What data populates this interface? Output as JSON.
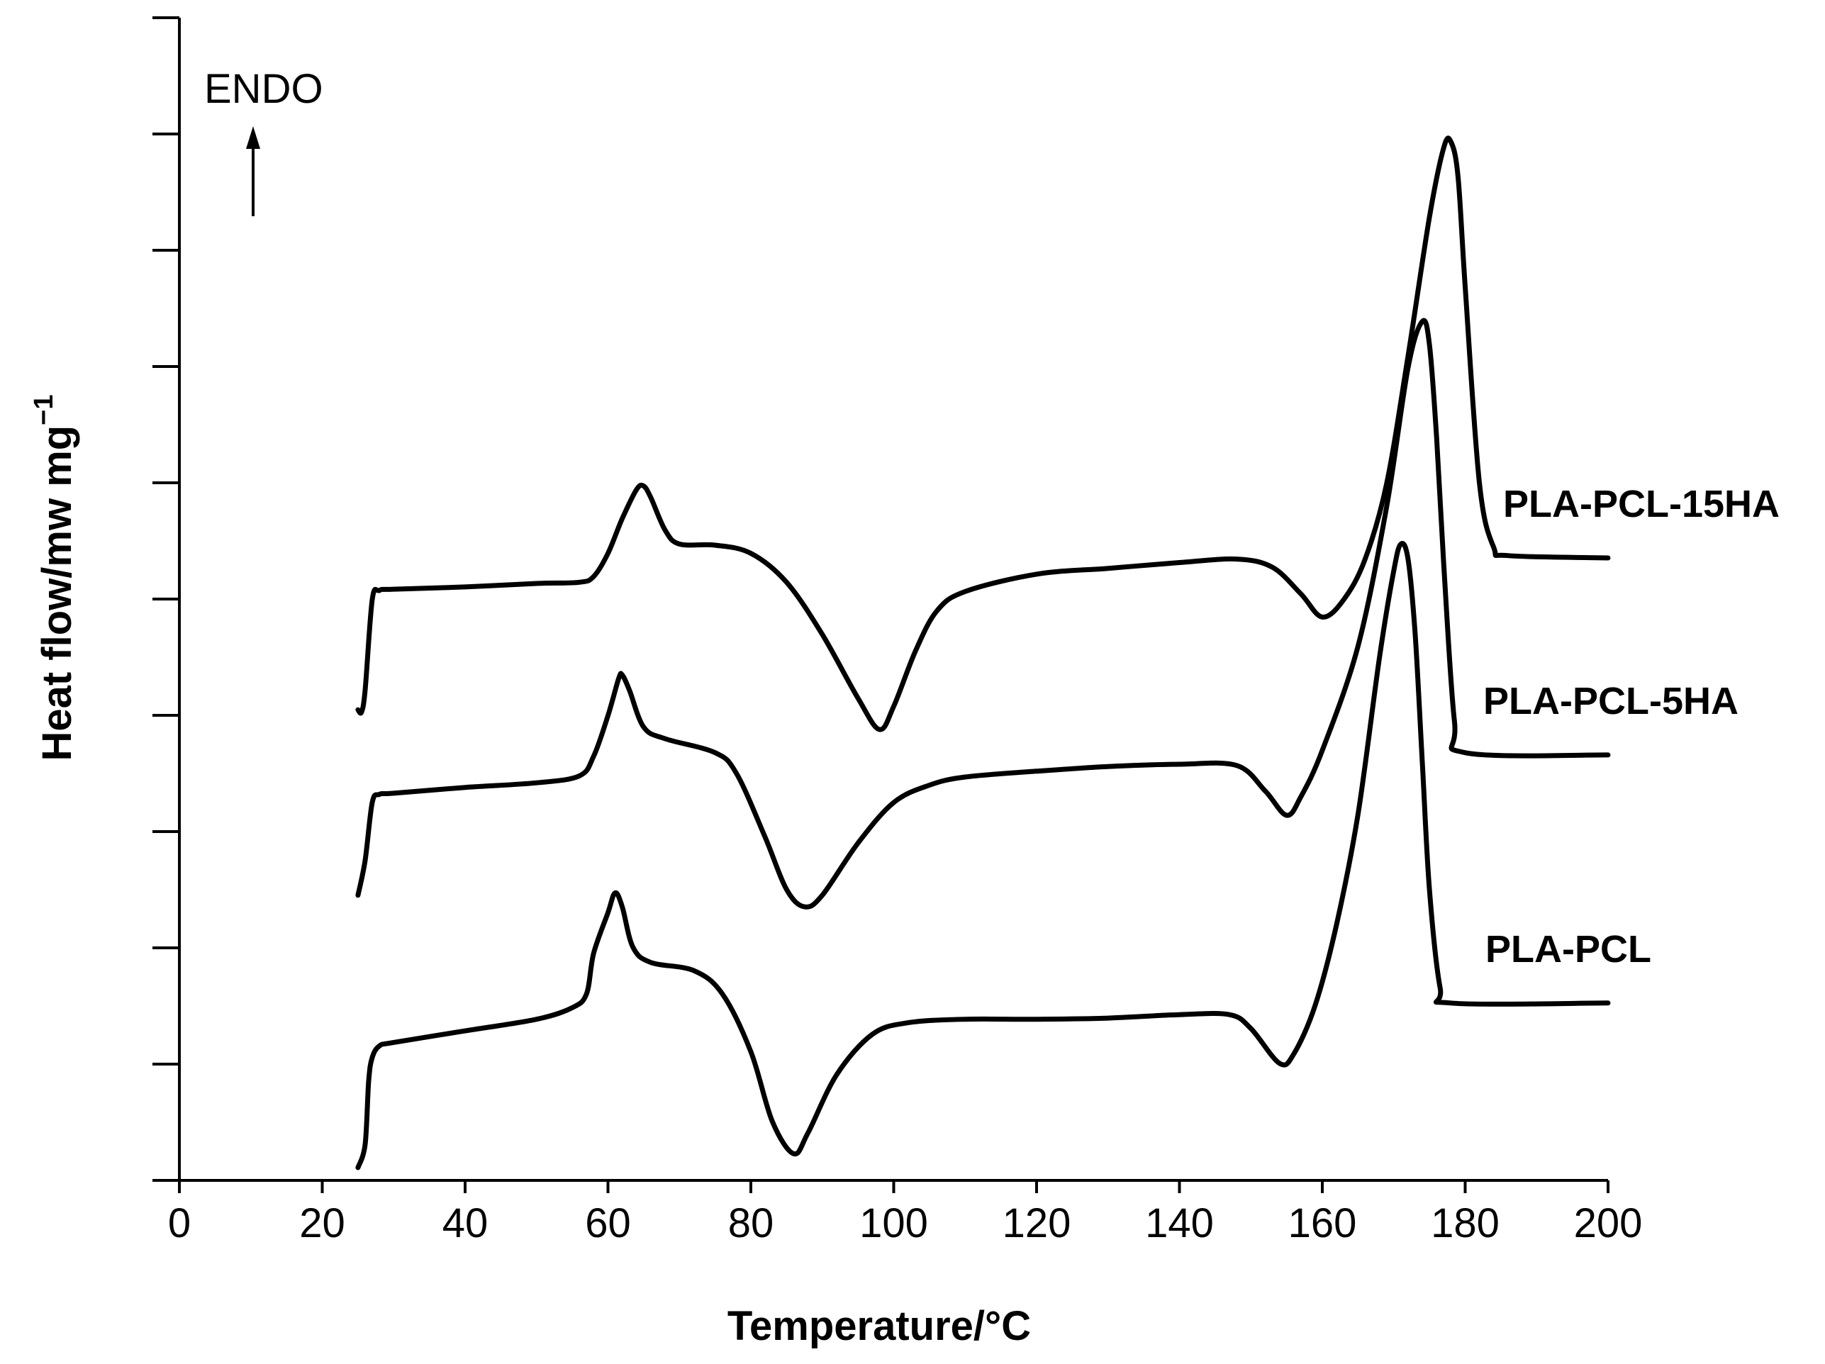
{
  "chart_data": {
    "type": "line",
    "xlabel": "Temperature/°C",
    "ylabel": "Heat flow/mw mg",
    "ylabel_superscript": "−1",
    "xlim": [
      0,
      200
    ],
    "x_ticks": [
      0,
      20,
      40,
      60,
      80,
      100,
      120,
      140,
      160,
      180,
      200
    ],
    "y_ticks_count": 10,
    "y_tick_labels": false,
    "grid": false,
    "annotation": "ENDO",
    "annotation_arrow": "up",
    "series": [
      {
        "name": "PLA-PCL-15HA",
        "color": "#000000",
        "points": [
          [
            25,
            3.95
          ],
          [
            25.5,
            3.93
          ],
          [
            26,
            4.12
          ],
          [
            27,
            4.9
          ],
          [
            28,
            4.98
          ],
          [
            30,
            4.99
          ],
          [
            40,
            5.01
          ],
          [
            50,
            5.04
          ],
          [
            56,
            5.05
          ],
          [
            58,
            5.1
          ],
          [
            60,
            5.3
          ],
          [
            62,
            5.6
          ],
          [
            64,
            5.85
          ],
          [
            65,
            5.88
          ],
          [
            66,
            5.78
          ],
          [
            68,
            5.5
          ],
          [
            70,
            5.38
          ],
          [
            75,
            5.37
          ],
          [
            80,
            5.3
          ],
          [
            85,
            5.05
          ],
          [
            90,
            4.6
          ],
          [
            95,
            4.05
          ],
          [
            98,
            3.78
          ],
          [
            100,
            3.98
          ],
          [
            103,
            4.45
          ],
          [
            106,
            4.8
          ],
          [
            110,
            4.97
          ],
          [
            120,
            5.12
          ],
          [
            130,
            5.17
          ],
          [
            140,
            5.22
          ],
          [
            148,
            5.25
          ],
          [
            153,
            5.18
          ],
          [
            157,
            4.95
          ],
          [
            160,
            4.75
          ],
          [
            163,
            4.9
          ],
          [
            166,
            5.25
          ],
          [
            169,
            5.9
          ],
          [
            172,
            7.0
          ],
          [
            175,
            8.2
          ],
          [
            177,
            8.8
          ],
          [
            178,
            8.85
          ],
          [
            179,
            8.55
          ],
          [
            180,
            7.6
          ],
          [
            182,
            5.9
          ],
          [
            184,
            5.35
          ],
          [
            186,
            5.28
          ],
          [
            200,
            5.26
          ]
        ]
      },
      {
        "name": "PLA-PCL-5HA",
        "color": "#000000",
        "points": [
          [
            25,
            2.35
          ],
          [
            26,
            2.65
          ],
          [
            27,
            3.15
          ],
          [
            28,
            3.22
          ],
          [
            30,
            3.23
          ],
          [
            40,
            3.28
          ],
          [
            50,
            3.32
          ],
          [
            56,
            3.38
          ],
          [
            58,
            3.55
          ],
          [
            60,
            3.9
          ],
          [
            61.5,
            4.22
          ],
          [
            62,
            4.25
          ],
          [
            63,
            4.12
          ],
          [
            65,
            3.8
          ],
          [
            68,
            3.7
          ],
          [
            75,
            3.58
          ],
          [
            78,
            3.4
          ],
          [
            82,
            2.85
          ],
          [
            85,
            2.4
          ],
          [
            87.5,
            2.25
          ],
          [
            90,
            2.35
          ],
          [
            95,
            2.8
          ],
          [
            100,
            3.15
          ],
          [
            105,
            3.3
          ],
          [
            110,
            3.37
          ],
          [
            120,
            3.42
          ],
          [
            130,
            3.46
          ],
          [
            140,
            3.48
          ],
          [
            148,
            3.47
          ],
          [
            152,
            3.25
          ],
          [
            155,
            3.04
          ],
          [
            157,
            3.2
          ],
          [
            160,
            3.6
          ],
          [
            165,
            4.5
          ],
          [
            169,
            5.7
          ],
          [
            172,
            6.9
          ],
          [
            174,
            7.3
          ],
          [
            175,
            7.1
          ],
          [
            176,
            6.3
          ],
          [
            177,
            5.2
          ],
          [
            178.5,
            3.85
          ],
          [
            180,
            3.58
          ],
          [
            200,
            3.56
          ]
        ]
      },
      {
        "name": "PLA-PCL",
        "color": "#000000",
        "points": [
          [
            25,
            0.0
          ],
          [
            26,
            0.2
          ],
          [
            26.5,
            0.75
          ],
          [
            27,
            0.95
          ],
          [
            28,
            1.05
          ],
          [
            30,
            1.08
          ],
          [
            40,
            1.18
          ],
          [
            50,
            1.28
          ],
          [
            55,
            1.38
          ],
          [
            57,
            1.5
          ],
          [
            58,
            1.85
          ],
          [
            60,
            2.2
          ],
          [
            61,
            2.37
          ],
          [
            62,
            2.25
          ],
          [
            63.5,
            1.9
          ],
          [
            66,
            1.77
          ],
          [
            72,
            1.7
          ],
          [
            76,
            1.5
          ],
          [
            80,
            1.0
          ],
          [
            83,
            0.4
          ],
          [
            86,
            0.12
          ],
          [
            88,
            0.3
          ],
          [
            92,
            0.8
          ],
          [
            97,
            1.15
          ],
          [
            102,
            1.25
          ],
          [
            110,
            1.28
          ],
          [
            120,
            1.28
          ],
          [
            130,
            1.29
          ],
          [
            140,
            1.32
          ],
          [
            147,
            1.32
          ],
          [
            150,
            1.2
          ],
          [
            154,
            0.9
          ],
          [
            156,
            0.98
          ],
          [
            159,
            1.4
          ],
          [
            162,
            2.1
          ],
          [
            165,
            3.05
          ],
          [
            168,
            4.4
          ],
          [
            170,
            5.15
          ],
          [
            171,
            5.38
          ],
          [
            172,
            5.25
          ],
          [
            173,
            4.6
          ],
          [
            174,
            3.5
          ],
          [
            175,
            2.4
          ],
          [
            176.5,
            1.55
          ],
          [
            178,
            1.42
          ],
          [
            200,
            1.42
          ]
        ]
      }
    ]
  }
}
